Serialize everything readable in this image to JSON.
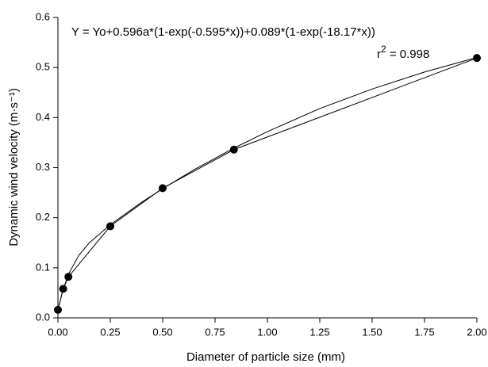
{
  "chart_data": {
    "type": "line",
    "xlabel": "Diameter of particle size (mm)",
    "ylabel": "Dynamic wind velocity (m·s⁻¹)",
    "annotations": [
      "Y = Yo+0.596a*(1-exp(-0.595*x))+0.089*(1-exp(-18.17*x))"
    ],
    "r2": {
      "base": "r",
      "sup": "2",
      "rest": " = 0.998"
    },
    "xlim": [
      0,
      2.0
    ],
    "ylim": [
      0,
      0.6
    ],
    "xticks": [
      {
        "value": 0,
        "label": "0.00"
      },
      {
        "value": 0.25,
        "label": "0.25"
      },
      {
        "value": 0.5,
        "label": "0.50"
      },
      {
        "value": 0.75,
        "label": "0.75"
      },
      {
        "value": 1.0,
        "label": "1.00"
      },
      {
        "value": 1.25,
        "label": "1.25"
      },
      {
        "value": 1.5,
        "label": "1.50"
      },
      {
        "value": 1.75,
        "label": "1.75"
      },
      {
        "value": 2.0,
        "label": "2.00"
      }
    ],
    "yticks": [
      {
        "value": 0,
        "label": "0.0"
      },
      {
        "value": 0.1,
        "label": "0.1"
      },
      {
        "value": 0.2,
        "label": "0.2"
      },
      {
        "value": 0.3,
        "label": "0.3"
      },
      {
        "value": 0.4,
        "label": "0.4"
      },
      {
        "value": 0.5,
        "label": "0.5"
      },
      {
        "value": 0.6,
        "label": "0.6"
      }
    ],
    "grid": false,
    "series": [
      {
        "color": "#000000",
        "markers": true,
        "x": [
          0,
          0.025,
          0.05,
          0.25,
          0.5,
          0.84,
          2.0
        ],
        "values": [
          0.016,
          0.058,
          0.082,
          0.183,
          0.259,
          0.336,
          0.519
        ]
      },
      {
        "color": "#000000",
        "markers": false,
        "x": [
          0,
          0.025,
          0.05,
          0.1,
          0.15,
          0.25,
          0.4,
          0.5,
          0.65,
          0.84,
          1.0,
          1.25,
          1.5,
          1.75,
          2.0
        ],
        "values": [
          0.016,
          0.057,
          0.087,
          0.125,
          0.15,
          0.186,
          0.231,
          0.258,
          0.296,
          0.339,
          0.372,
          0.418,
          0.457,
          0.491,
          0.52
        ]
      }
    ]
  }
}
